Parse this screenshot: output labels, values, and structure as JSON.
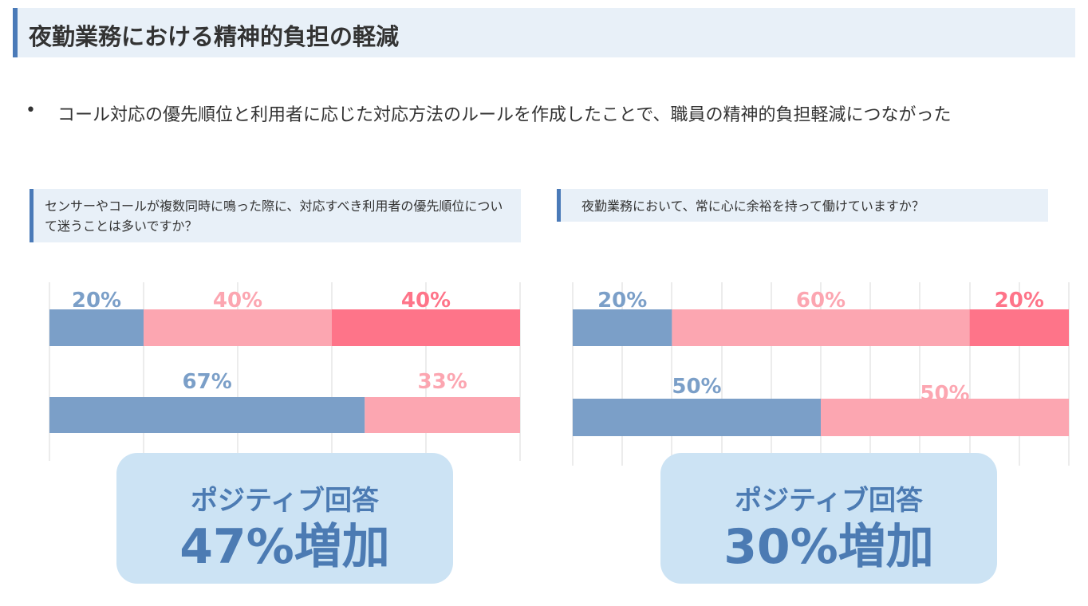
{
  "title": "夜勤業務における精神的負担の軽減",
  "bullet": "コール対応の優先順位と利用者に応じた対応方法のルールを作成したことで、職員の精神的負担軽減につながった",
  "colors": {
    "blue": "#7b9fc8",
    "light_pink": "#fca6b1",
    "pink": "#fe7489",
    "grid": "#d9d9d9"
  },
  "chart_data": [
    {
      "type": "bar",
      "title": "センサーやコールが複数同時に鳴った際に、対応すべき利用者の優先順位について迷うことは多いですか？",
      "orientation": "horizontal-stacked-100",
      "rows": [
        {
          "segments": [
            {
              "value": 20,
              "label": "20%"
            },
            {
              "value": 40,
              "label": "40%"
            },
            {
              "value": 40,
              "label": "40%"
            }
          ]
        },
        {
          "segments": [
            {
              "value": 67,
              "label": "67%"
            },
            {
              "value": 33,
              "label": "33%"
            }
          ]
        }
      ],
      "xlim": [
        0,
        100
      ],
      "gridlines": 5,
      "result": {
        "line1": "ポジティブ回答",
        "line2": "47%増加"
      }
    },
    {
      "type": "bar",
      "title": "夜勤業務において、常に心に余裕を持って働けていますか？",
      "orientation": "horizontal-stacked-100",
      "rows": [
        {
          "segments": [
            {
              "value": 20,
              "label": "20%"
            },
            {
              "value": 60,
              "label": "60%"
            },
            {
              "value": 20,
              "label": "20%"
            }
          ]
        },
        {
          "segments": [
            {
              "value": 50,
              "label": "50%"
            },
            {
              "value": 50,
              "label": "50%"
            }
          ]
        }
      ],
      "xlim": [
        0,
        100
      ],
      "gridlines": 10,
      "result": {
        "line1": "ポジティブ回答",
        "line2": "30%増加"
      }
    }
  ]
}
